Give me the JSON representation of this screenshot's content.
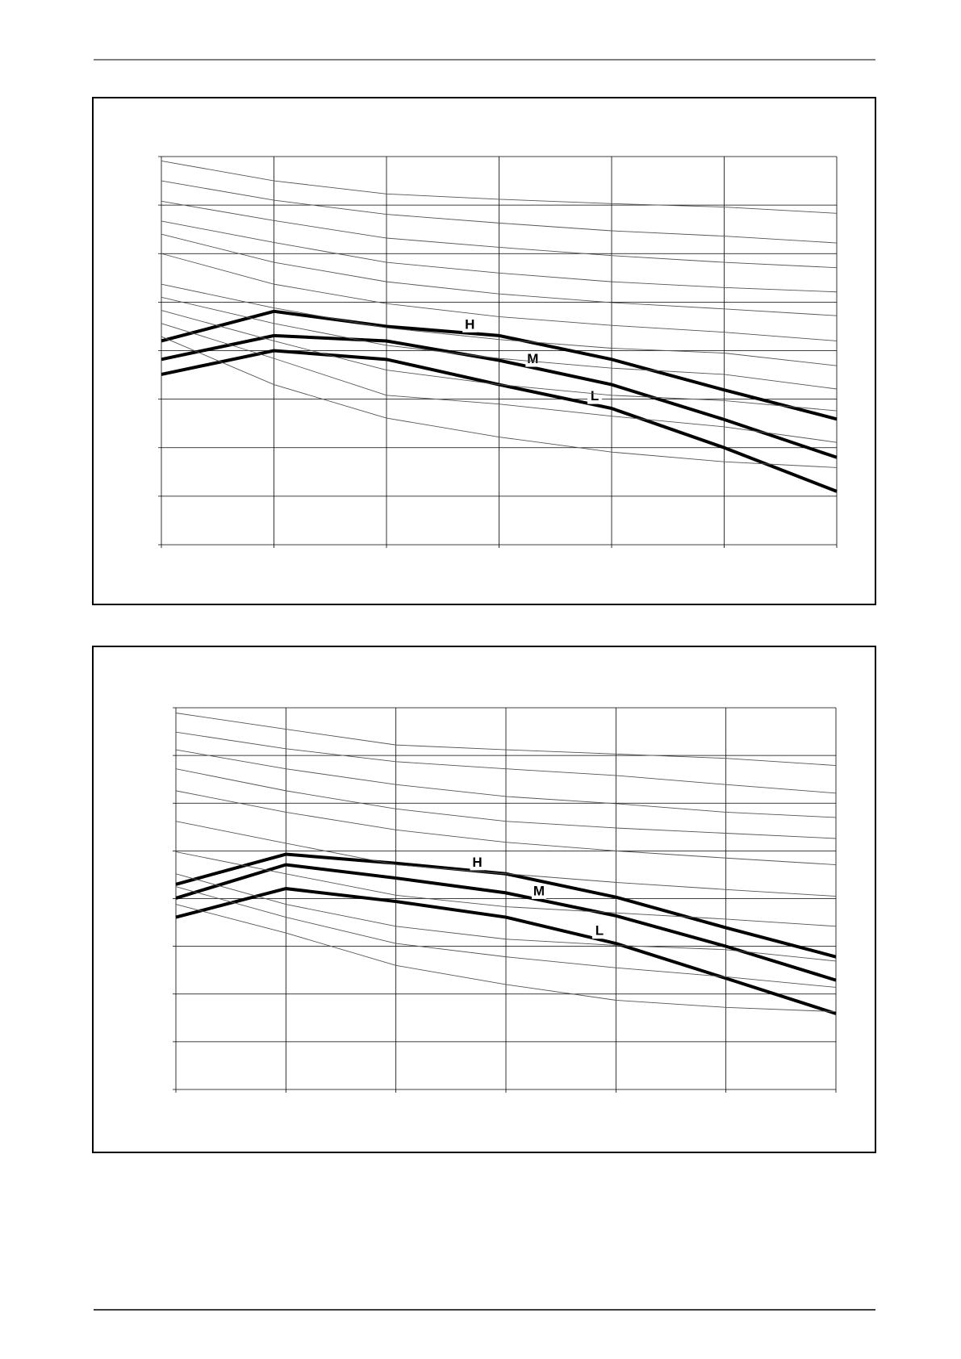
{
  "chart_data": [
    {
      "type": "line",
      "xlim": [
        0,
        6
      ],
      "xticks": [
        0,
        1,
        2,
        3,
        4,
        5,
        6
      ],
      "ylim": [
        0,
        8
      ],
      "yticks": [
        0,
        1,
        2,
        3,
        4,
        5,
        6,
        7,
        8
      ],
      "grid": true,
      "x": [
        0,
        1,
        2,
        3,
        4,
        5,
        6
      ],
      "series": [
        {
          "name": "H",
          "color": "#000000",
          "values": [
            4.2,
            4.81,
            4.5,
            4.31,
            3.82,
            3.19,
            2.59
          ]
        },
        {
          "name": "M",
          "color": "#000000",
          "values": [
            3.82,
            4.31,
            4.2,
            3.8,
            3.3,
            2.58,
            1.8
          ]
        },
        {
          "name": "L",
          "color": "#000000",
          "values": [
            3.51,
            4.0,
            3.82,
            3.3,
            2.81,
            2.0,
            1.1
          ]
        },
        {
          "color": "#555555",
          "values": [
            7.91,
            7.5,
            7.23,
            7.12,
            7.03,
            6.96,
            6.83
          ]
        },
        {
          "color": "#555555",
          "values": [
            7.5,
            7.1,
            6.81,
            6.63,
            6.47,
            6.36,
            6.22
          ]
        },
        {
          "color": "#555555",
          "values": [
            7.08,
            6.68,
            6.32,
            6.13,
            5.96,
            5.82,
            5.71
          ]
        },
        {
          "color": "#555555",
          "values": [
            6.67,
            6.23,
            5.82,
            5.6,
            5.42,
            5.3,
            5.21
          ]
        },
        {
          "color": "#555555",
          "values": [
            6.4,
            5.82,
            5.42,
            5.17,
            4.99,
            4.86,
            4.72
          ]
        },
        {
          "color": "#555555",
          "values": [
            6.0,
            5.37,
            4.97,
            4.7,
            4.52,
            4.38,
            4.2
          ]
        },
        {
          "color": "#555555",
          "values": [
            5.37,
            4.88,
            4.47,
            4.23,
            4.05,
            3.95,
            3.69
          ]
        },
        {
          "color": "#555555",
          "values": [
            5.1,
            4.56,
            4.11,
            3.84,
            3.64,
            3.51,
            3.21
          ]
        },
        {
          "color": "#555555",
          "values": [
            4.83,
            4.2,
            3.6,
            3.3,
            3.08,
            2.97,
            2.76
          ]
        },
        {
          "color": "#555555",
          "values": [
            4.56,
            3.84,
            3.08,
            2.9,
            2.65,
            2.43,
            2.11
          ]
        },
        {
          "color": "#555555",
          "values": [
            4.29,
            3.3,
            2.61,
            2.22,
            1.91,
            1.71,
            1.59
          ]
        }
      ]
    },
    {
      "type": "line",
      "xlim": [
        0,
        6
      ],
      "xticks": [
        0,
        1,
        2,
        3,
        4,
        5,
        6
      ],
      "ylim": [
        0,
        8
      ],
      "yticks": [
        0,
        1,
        2,
        3,
        4,
        5,
        6,
        7,
        8
      ],
      "grid": true,
      "x": [
        0,
        1,
        2,
        3,
        4,
        5,
        6
      ],
      "series": [
        {
          "name": "H",
          "color": "#000000",
          "values": [
            4.3,
            4.93,
            4.74,
            4.52,
            4.03,
            3.39,
            2.78
          ]
        },
        {
          "name": "M",
          "color": "#000000",
          "values": [
            4.01,
            4.71,
            4.43,
            4.12,
            3.64,
            3.0,
            2.29
          ]
        },
        {
          "name": "L",
          "color": "#000000",
          "values": [
            3.61,
            4.21,
            3.94,
            3.61,
            3.06,
            2.33,
            1.59
          ]
        },
        {
          "color": "#555555",
          "values": [
            7.89,
            7.55,
            7.22,
            7.12,
            7.03,
            6.94,
            6.79
          ]
        },
        {
          "color": "#555555",
          "values": [
            7.49,
            7.14,
            6.87,
            6.72,
            6.58,
            6.39,
            6.21
          ]
        },
        {
          "color": "#555555",
          "values": [
            7.12,
            6.72,
            6.39,
            6.14,
            5.99,
            5.81,
            5.7
          ]
        },
        {
          "color": "#555555",
          "values": [
            6.72,
            6.26,
            5.88,
            5.62,
            5.48,
            5.37,
            5.26
          ]
        },
        {
          "color": "#555555",
          "values": [
            6.26,
            5.81,
            5.44,
            5.18,
            5.0,
            4.85,
            4.71
          ]
        },
        {
          "color": "#555555",
          "values": [
            5.62,
            5.16,
            4.71,
            4.52,
            4.34,
            4.19,
            4.05
          ]
        },
        {
          "color": "#555555",
          "values": [
            4.98,
            4.52,
            4.07,
            3.83,
            3.7,
            3.57,
            3.42
          ]
        },
        {
          "color": "#555555",
          "values": [
            4.52,
            3.88,
            3.42,
            3.15,
            3.02,
            2.93,
            2.69
          ]
        },
        {
          "color": "#555555",
          "values": [
            4.25,
            3.61,
            3.06,
            2.78,
            2.55,
            2.36,
            2.14
          ]
        },
        {
          "color": "#555555",
          "values": [
            3.88,
            3.28,
            2.6,
            2.2,
            1.87,
            1.72,
            1.63
          ]
        }
      ]
    }
  ]
}
